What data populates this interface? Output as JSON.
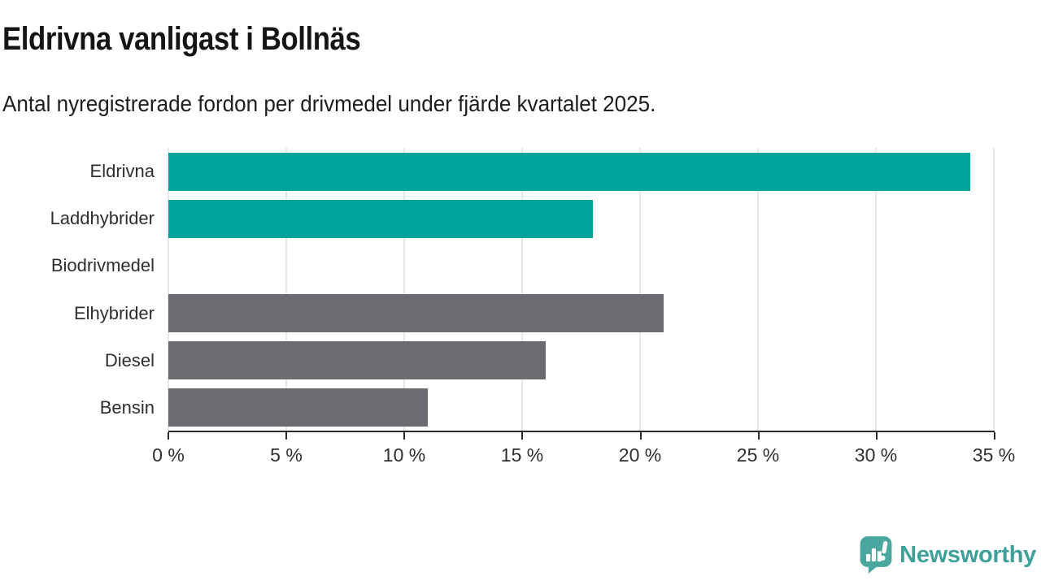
{
  "chart_data": {
    "type": "bar",
    "orientation": "horizontal",
    "title": "Eldrivna vanligast i Bollnäs",
    "subtitle": "Antal nyregistrerade fordon per drivmedel under fjärde kvartalet 2025.",
    "categories": [
      "Eldrivna",
      "Laddhybrider",
      "Biodrivmedel",
      "Elhybrider",
      "Diesel",
      "Bensin"
    ],
    "values": [
      34,
      18,
      0,
      21,
      16,
      11
    ],
    "unit": "%",
    "bar_colors": [
      "#00a49a",
      "#00a49a",
      "#00a49a",
      "#6c6b72",
      "#6c6b72",
      "#6c6b72"
    ],
    "xlim": [
      0,
      35
    ],
    "x_ticks": [
      {
        "value": 0,
        "label": "0 %"
      },
      {
        "value": 5,
        "label": "5 %"
      },
      {
        "value": 10,
        "label": "10 %"
      },
      {
        "value": 15,
        "label": "15 %"
      },
      {
        "value": 20,
        "label": "20 %"
      },
      {
        "value": 25,
        "label": "25 %"
      },
      {
        "value": 30,
        "label": "30 %"
      },
      {
        "value": 35,
        "label": "35 %"
      }
    ],
    "grid": "vertical",
    "legend": "none"
  },
  "branding": {
    "logo_text": "Newsworthy"
  },
  "colors": {
    "accent_teal": "#00a49a",
    "neutral_gray": "#6c6b72",
    "logo_teal": "#3fa09a",
    "axis": "#2b2b2b",
    "gridline": "#e7e7e7",
    "text_dark": "#151515",
    "text_label": "#2e2e2e"
  }
}
